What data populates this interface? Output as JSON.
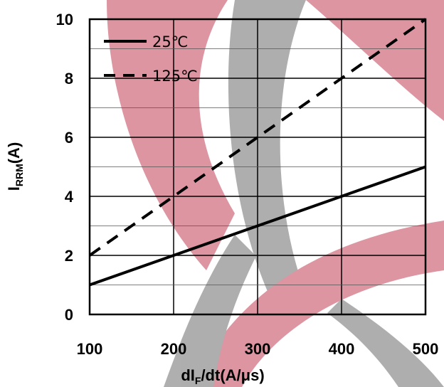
{
  "chart_data": {
    "type": "line",
    "xlabel": {
      "main": "dI",
      "sub": "F",
      "rest": "/dt(A/μs)"
    },
    "ylabel": {
      "main": "I",
      "sub": "RRM",
      "rest": "(A)"
    },
    "xlim": [
      100,
      500
    ],
    "ylim": [
      0,
      10
    ],
    "xticks": [
      "100",
      "200",
      "300",
      "400",
      "500"
    ],
    "yticks": [
      "0",
      "2",
      "4",
      "6",
      "8",
      "10"
    ],
    "grid": true,
    "legend_position": "top-left",
    "series": [
      {
        "name": "25℃",
        "style": "solid",
        "color": "#000000",
        "x": [
          100,
          200,
          300,
          400,
          500
        ],
        "y": [
          1,
          2,
          3,
          4,
          5
        ]
      },
      {
        "name": "125℃",
        "style": "dashed",
        "color": "#000000",
        "x": [
          100,
          200,
          300,
          400,
          500
        ],
        "y": [
          2,
          4,
          6,
          8,
          10
        ]
      }
    ]
  },
  "colors": {
    "watermark_red": "#d98a97",
    "watermark_gray": "#a6a6a6"
  }
}
